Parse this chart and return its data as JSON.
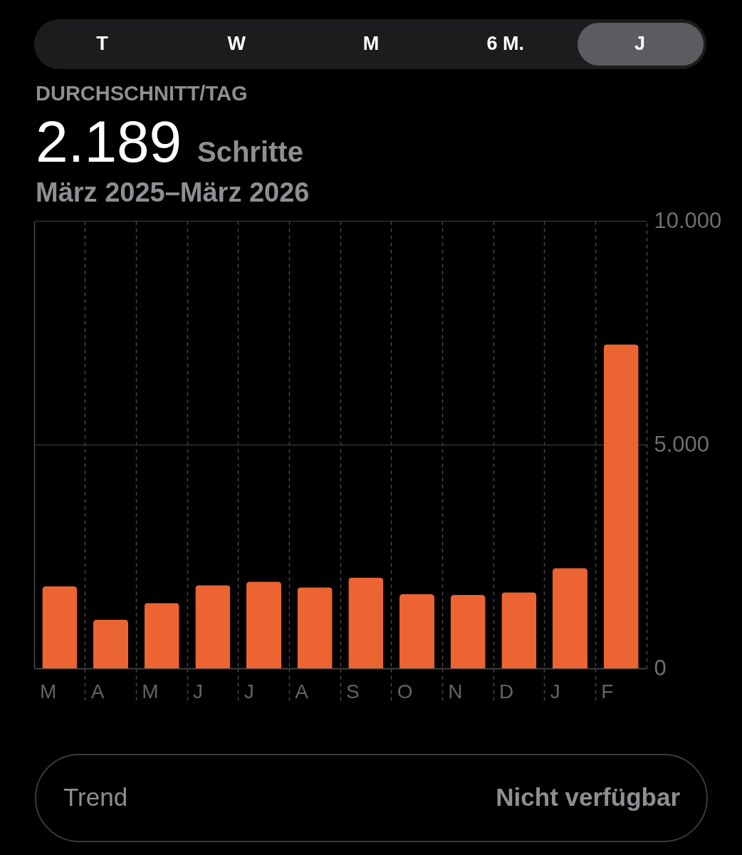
{
  "chart_data": {
    "type": "bar",
    "title": "DURCHSCHNITT/TAG",
    "subtitle": "März 2025–März 2026",
    "annotations": [
      "T",
      "W",
      "M",
      "6 M.",
      "J",
      "2.189",
      "Schritte",
      "Trend",
      "Nicht verfügbar"
    ],
    "categories": [
      "M",
      "A",
      "M",
      "J",
      "J",
      "A",
      "S",
      "O",
      "N",
      "D",
      "J",
      "F"
    ],
    "values": [
      1830,
      1090,
      1460,
      1860,
      1940,
      1810,
      2030,
      1660,
      1640,
      1700,
      2240,
      7240
    ],
    "color": "#eb6432",
    "ylim": [
      0,
      10000
    ],
    "yticks": [
      0,
      {
        "value": 5000,
        "label": "5.000"
      },
      {
        "value": 10000,
        "label": "10.000"
      }
    ],
    "grid": true
  }
}
